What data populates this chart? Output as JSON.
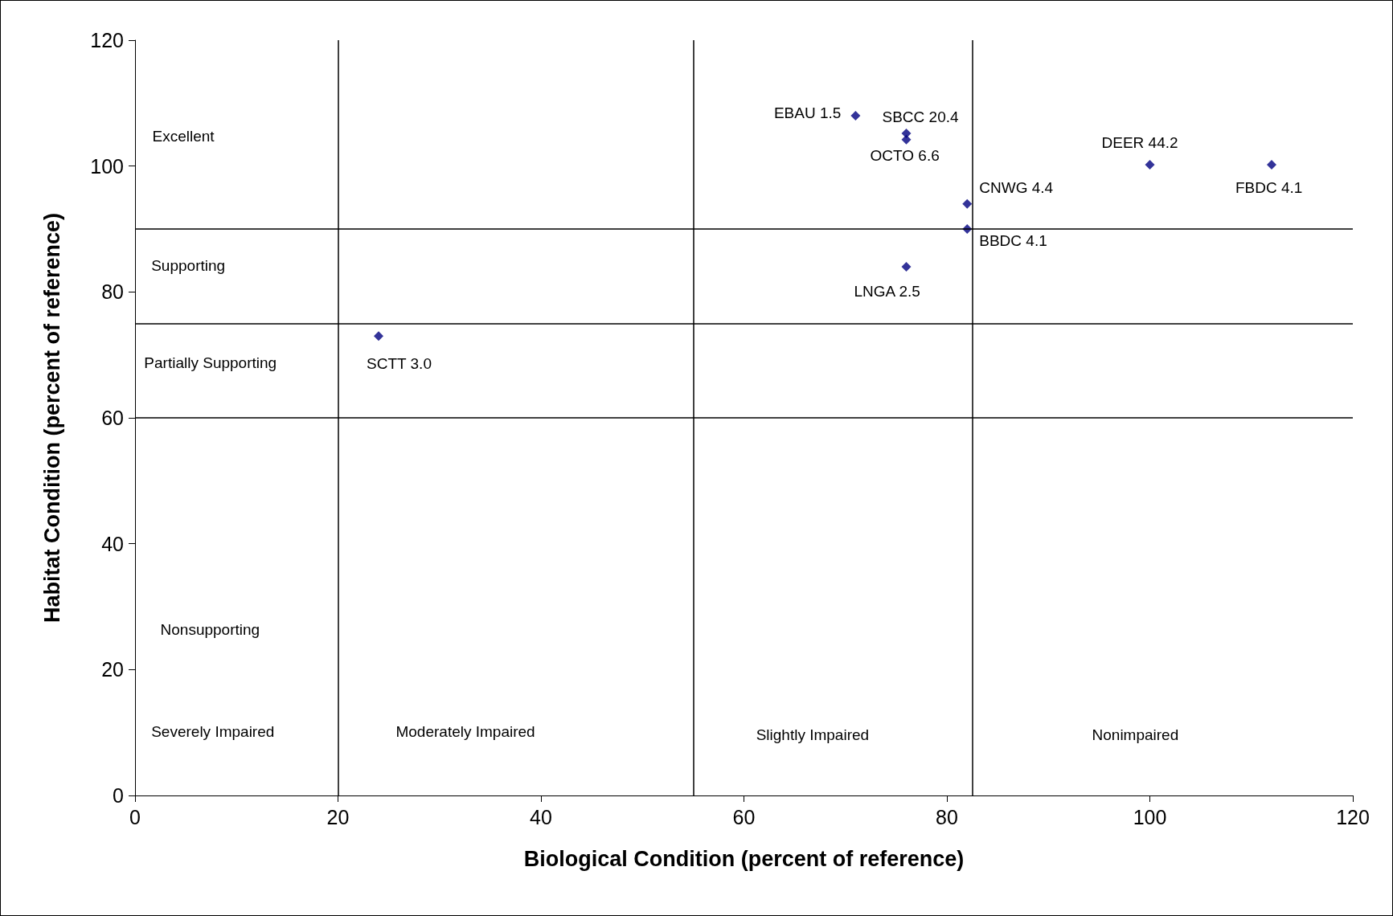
{
  "chart_data": {
    "type": "scatter",
    "xlabel": "Biological Condition (percent of reference)",
    "ylabel": "Habitat Condition (percent of reference)",
    "x": [
      71,
      76,
      76,
      82,
      82,
      76,
      100,
      112,
      24
    ],
    "values": [
      108,
      105.2,
      104.2,
      94,
      90,
      84,
      100.2,
      100.2,
      73
    ],
    "color": "#000080",
    "marker": "diamond",
    "grid": false,
    "xlim": [
      0,
      120
    ],
    "xticks": [
      0,
      20,
      40,
      60,
      80,
      100,
      120
    ],
    "ylim": [
      0,
      120
    ],
    "yticks": [
      0,
      20,
      40,
      60,
      80,
      100,
      120
    ],
    "ref_lines": [
      {
        "axis": "x",
        "value": 20,
        "color": "#000000"
      },
      {
        "axis": "x",
        "value": 55,
        "color": "#000000"
      },
      {
        "axis": "x",
        "value": 82.5,
        "color": "#000000"
      },
      {
        "axis": "y",
        "value": 90,
        "color": "#000000"
      },
      {
        "axis": "y",
        "value": 75,
        "color": "#000000"
      },
      {
        "axis": "y",
        "value": 60,
        "color": "#000000"
      }
    ],
    "annotations": [
      {
        "text": "EBAU 1.5",
        "x": 71,
        "y": 108
      },
      {
        "text": "SBCC 20.4",
        "x": 76,
        "y": 105.2
      },
      {
        "text": "OCTO 6.6",
        "x": 76,
        "y": 104.2
      },
      {
        "text": "CNWG 4.4",
        "x": 82,
        "y": 94
      },
      {
        "text": "BBDC 4.1",
        "x": 82,
        "y": 90
      },
      {
        "text": "LNGA 2.5",
        "x": 76,
        "y": 84
      },
      {
        "text": "DEER 44.2",
        "x": 100,
        "y": 100.2
      },
      {
        "text": "FBDC 4.1",
        "x": 112,
        "y": 100.2
      },
      {
        "text": "SCTT 3.0",
        "x": 24,
        "y": 73
      },
      "Excellent",
      "Supporting",
      "Partially Supporting",
      "Nonsupporting",
      "Severely Impaired",
      "Moderately Impaired",
      "Slightly Impaired",
      "Nonimpaired"
    ]
  }
}
